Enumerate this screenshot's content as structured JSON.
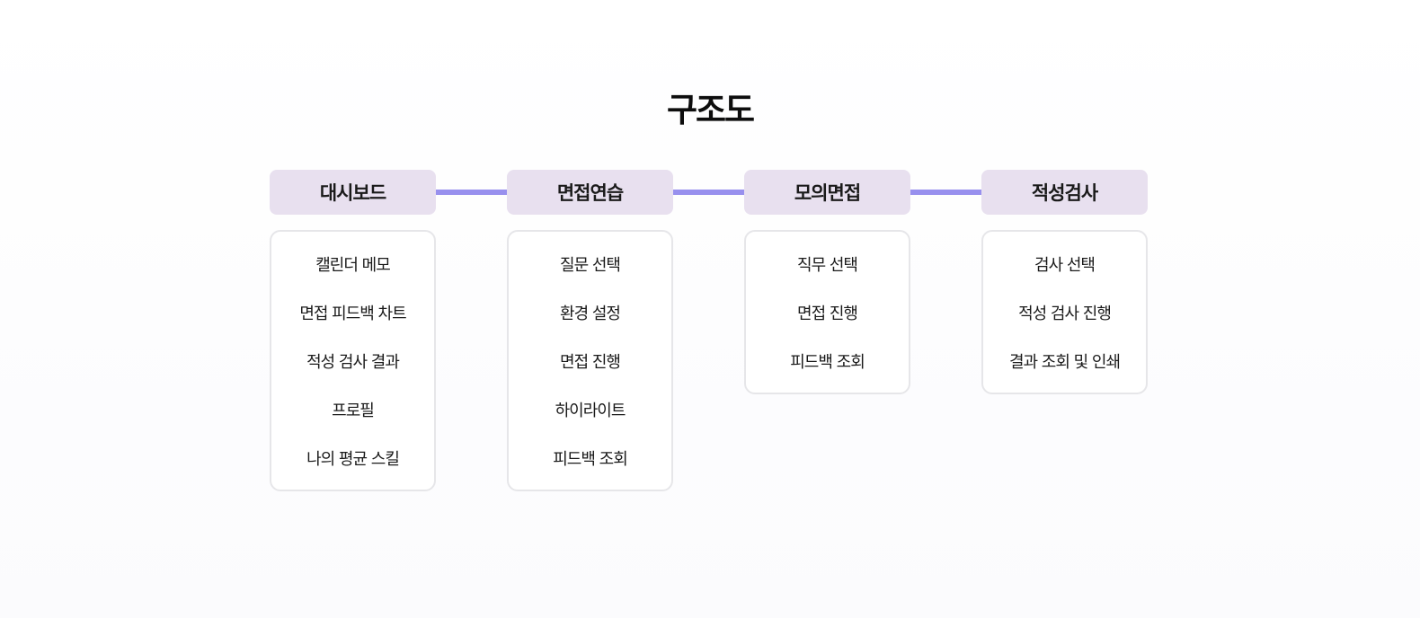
{
  "title": "구조도",
  "columns": [
    {
      "header": "대시보드",
      "items": [
        "캘린더 메모",
        "면접 피드백 차트",
        "적성 검사 결과",
        "프로필",
        "나의 평균 스킬"
      ]
    },
    {
      "header": "면접연습",
      "items": [
        "질문 선택",
        "환경 설정",
        "면접 진행",
        "하이라이트",
        "피드백 조회"
      ]
    },
    {
      "header": "모의면접",
      "items": [
        "직무 선택",
        "면접 진행",
        "피드백 조회"
      ]
    },
    {
      "header": "적성검사",
      "items": [
        "검사 선택",
        "적성 검사 진행",
        "결과 조회 및 인쇄"
      ]
    }
  ],
  "colors": {
    "header_bg": "#e8e0ef",
    "connector": "#9890ee",
    "box_border": "#e6e6e9"
  }
}
